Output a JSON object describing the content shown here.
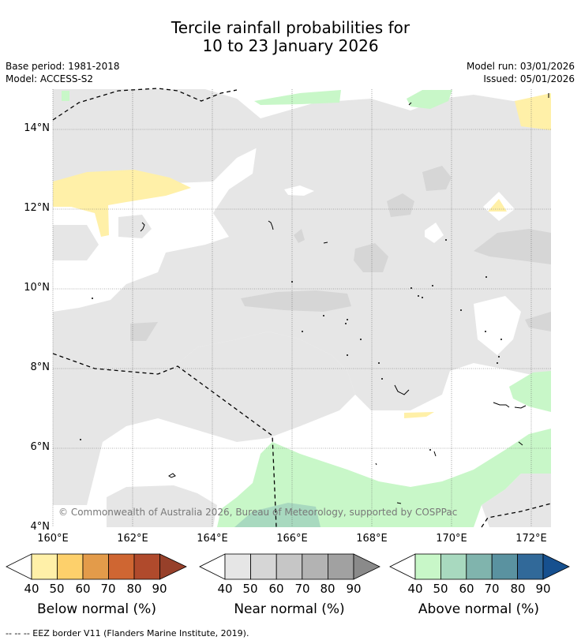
{
  "title": {
    "line1": "Tercile rainfall probabilities for",
    "line2": "10 to 23 January 2026"
  },
  "meta": {
    "base_period": "Base period: 1981-2018",
    "model": "Model: ACCESS-S2",
    "model_run": "Model run: 03/01/2026",
    "issued": "Issued: 05/01/2026"
  },
  "axes": {
    "lat_labels": [
      "14°N",
      "12°N",
      "10°N",
      "8°N",
      "6°N",
      "4°N"
    ],
    "lon_labels": [
      "160°E",
      "162°E",
      "164°E",
      "166°E",
      "168°E",
      "170°E",
      "172°E"
    ]
  },
  "copyright": "© Commonwealth of Australia 2026, Bureau of Meteorology, supported by COSPPac",
  "legends": {
    "below": {
      "title": "Below normal (%)",
      "ticks": [
        "40",
        "50",
        "60",
        "70",
        "80",
        "90"
      ],
      "colors": [
        "#fff0a8",
        "#fdd06b",
        "#e39b4a",
        "#cf6632",
        "#b04a2c",
        "#97402a"
      ]
    },
    "near": {
      "title": "Near normal (%)",
      "ticks": [
        "40",
        "50",
        "60",
        "70",
        "80",
        "90"
      ],
      "colors": [
        "#e6e6e6",
        "#d6d6d6",
        "#c6c6c6",
        "#b3b3b3",
        "#a1a1a1",
        "#8a8a8a"
      ]
    },
    "above": {
      "title": "Above normal (%)",
      "ticks": [
        "40",
        "50",
        "60",
        "70",
        "80",
        "90"
      ],
      "colors": [
        "#c8f7c8",
        "#a8d9bf",
        "#80b4ad",
        "#5a92a0",
        "#316999",
        "#16508f"
      ]
    }
  },
  "footer": "--  --  -- EEZ border V11 (Flanders Marine Institute, 2019)."
}
